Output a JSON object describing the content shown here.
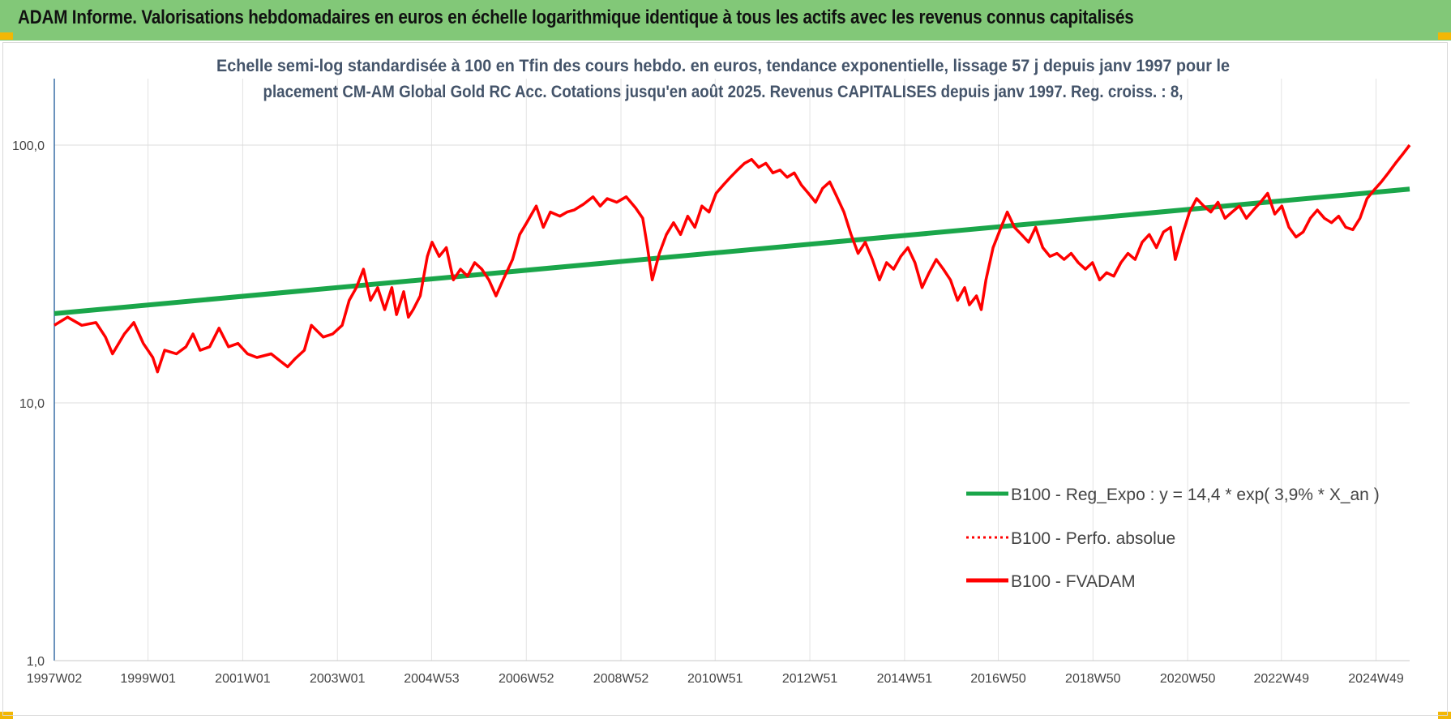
{
  "header": {
    "title": "ADAM Informe. Valorisations hebdomadaires en euros en échelle logarithmique identique à tous les actifs avec les revenus connus capitalisés",
    "background_color": "#82c878",
    "corner_color": "#f2b705"
  },
  "chart_data": {
    "type": "line",
    "title_lines": [
      "Echelle semi-log standardisée à 100 en Tfin des cours hebdo. en euros, tendance exponentielle, lissage 57 j depuis janv 1997 pour le",
      "placement CM-AM Global Gold RC Acc.  Cotations jusqu'en août 2025.  Revenus CAPITALISES depuis janv 1997. Reg.  croiss. : 8,"
    ],
    "y_scale": "log",
    "ylim": [
      1,
      200
    ],
    "xlim": [
      1997.02,
      2025.65
    ],
    "y_ticks": [
      {
        "value": 1,
        "label": "1,0"
      },
      {
        "value": 10,
        "label": "10,0"
      },
      {
        "value": 100,
        "label": "100,0"
      }
    ],
    "x_ticks": [
      {
        "year": 1997.02,
        "label": "1997W02"
      },
      {
        "year": 1999.0,
        "label": "1999W01"
      },
      {
        "year": 2001.0,
        "label": "2001W01"
      },
      {
        "year": 2003.0,
        "label": "2003W01"
      },
      {
        "year": 2004.99,
        "label": "2004W53"
      },
      {
        "year": 2006.99,
        "label": "2006W52"
      },
      {
        "year": 2008.99,
        "label": "2008W52"
      },
      {
        "year": 2010.98,
        "label": "2010W51"
      },
      {
        "year": 2012.98,
        "label": "2012W51"
      },
      {
        "year": 2014.98,
        "label": "2014W51"
      },
      {
        "year": 2016.96,
        "label": "2016W50"
      },
      {
        "year": 2018.96,
        "label": "2018W50"
      },
      {
        "year": 2020.96,
        "label": "2020W50"
      },
      {
        "year": 2022.94,
        "label": "2022W49"
      },
      {
        "year": 2024.94,
        "label": "2024W49"
      }
    ],
    "grid": "vertical and horizontal",
    "legend_position": "bottom-right",
    "series": [
      {
        "name": "B100 - Reg_Expo : y = 14,4 * exp( 3,9% *  X_an )",
        "color": "#1aa64a",
        "style": "solid",
        "points": [
          [
            1997.02,
            22.2
          ],
          [
            2025.65,
            67.5
          ]
        ]
      },
      {
        "name": "B100 - Perfo. absolue",
        "color": "#ff0000",
        "style": "dotted",
        "points": []
      },
      {
        "name": "B100 - FVADAM",
        "color": "#ff0000",
        "style": "solid",
        "points": [
          [
            1997.02,
            20
          ],
          [
            1997.3,
            21.5
          ],
          [
            1997.6,
            20
          ],
          [
            1997.9,
            20.5
          ],
          [
            1998.1,
            18
          ],
          [
            1998.25,
            15.5
          ],
          [
            1998.5,
            18.5
          ],
          [
            1998.7,
            20.5
          ],
          [
            1998.9,
            17
          ],
          [
            1999.1,
            15
          ],
          [
            1999.2,
            13.2
          ],
          [
            1999.35,
            16
          ],
          [
            1999.6,
            15.5
          ],
          [
            1999.8,
            16.5
          ],
          [
            1999.95,
            18.5
          ],
          [
            2000.1,
            16
          ],
          [
            2000.3,
            16.5
          ],
          [
            2000.5,
            19.5
          ],
          [
            2000.7,
            16.5
          ],
          [
            2000.9,
            17
          ],
          [
            2001.1,
            15.5
          ],
          [
            2001.3,
            15
          ],
          [
            2001.6,
            15.5
          ],
          [
            2001.8,
            14.5
          ],
          [
            2001.95,
            13.8
          ],
          [
            2002.1,
            14.8
          ],
          [
            2002.3,
            16
          ],
          [
            2002.45,
            20
          ],
          [
            2002.7,
            18
          ],
          [
            2002.9,
            18.5
          ],
          [
            2003.1,
            20
          ],
          [
            2003.25,
            25
          ],
          [
            2003.4,
            28
          ],
          [
            2003.55,
            33
          ],
          [
            2003.7,
            25
          ],
          [
            2003.85,
            28
          ],
          [
            2004.0,
            23
          ],
          [
            2004.15,
            28
          ],
          [
            2004.25,
            22
          ],
          [
            2004.4,
            27
          ],
          [
            2004.5,
            21.5
          ],
          [
            2004.6,
            23
          ],
          [
            2004.75,
            26
          ],
          [
            2004.9,
            37
          ],
          [
            2005.0,
            42
          ],
          [
            2005.15,
            37
          ],
          [
            2005.3,
            40
          ],
          [
            2005.45,
            30
          ],
          [
            2005.6,
            33
          ],
          [
            2005.75,
            31
          ],
          [
            2005.9,
            35
          ],
          [
            2006.05,
            33
          ],
          [
            2006.2,
            30
          ],
          [
            2006.35,
            26
          ],
          [
            2006.5,
            30
          ],
          [
            2006.7,
            36
          ],
          [
            2006.85,
            45
          ],
          [
            2007.0,
            50
          ],
          [
            2007.2,
            58
          ],
          [
            2007.35,
            48
          ],
          [
            2007.5,
            55
          ],
          [
            2007.7,
            53
          ],
          [
            2007.85,
            55
          ],
          [
            2008.0,
            56
          ],
          [
            2008.2,
            59
          ],
          [
            2008.4,
            63
          ],
          [
            2008.55,
            58
          ],
          [
            2008.7,
            62
          ],
          [
            2008.9,
            60
          ],
          [
            2009.1,
            63
          ],
          [
            2009.3,
            57
          ],
          [
            2009.45,
            52
          ],
          [
            2009.55,
            40
          ],
          [
            2009.65,
            30
          ],
          [
            2009.8,
            38
          ],
          [
            2009.95,
            45
          ],
          [
            2010.1,
            50
          ],
          [
            2010.25,
            45
          ],
          [
            2010.4,
            53
          ],
          [
            2010.55,
            48
          ],
          [
            2010.7,
            58
          ],
          [
            2010.85,
            55
          ],
          [
            2011.0,
            65
          ],
          [
            2011.15,
            70
          ],
          [
            2011.3,
            75
          ],
          [
            2011.45,
            80
          ],
          [
            2011.6,
            85
          ],
          [
            2011.75,
            88
          ],
          [
            2011.9,
            82
          ],
          [
            2012.05,
            85
          ],
          [
            2012.2,
            78
          ],
          [
            2012.35,
            80
          ],
          [
            2012.5,
            75
          ],
          [
            2012.65,
            78
          ],
          [
            2012.8,
            70
          ],
          [
            2012.95,
            65
          ],
          [
            2013.1,
            60
          ],
          [
            2013.25,
            68
          ],
          [
            2013.4,
            72
          ],
          [
            2013.55,
            63
          ],
          [
            2013.7,
            55
          ],
          [
            2013.85,
            45
          ],
          [
            2014.0,
            38
          ],
          [
            2014.15,
            42
          ],
          [
            2014.3,
            36
          ],
          [
            2014.45,
            30
          ],
          [
            2014.6,
            35
          ],
          [
            2014.75,
            33
          ],
          [
            2014.9,
            37
          ],
          [
            2015.05,
            40
          ],
          [
            2015.2,
            35
          ],
          [
            2015.35,
            28
          ],
          [
            2015.5,
            32
          ],
          [
            2015.65,
            36
          ],
          [
            2015.8,
            33
          ],
          [
            2015.95,
            30
          ],
          [
            2016.1,
            25
          ],
          [
            2016.25,
            28
          ],
          [
            2016.35,
            24
          ],
          [
            2016.5,
            26
          ],
          [
            2016.6,
            23
          ],
          [
            2016.7,
            30
          ],
          [
            2016.85,
            40
          ],
          [
            2017.0,
            47
          ],
          [
            2017.15,
            55
          ],
          [
            2017.3,
            48
          ],
          [
            2017.45,
            45
          ],
          [
            2017.6,
            42
          ],
          [
            2017.75,
            48
          ],
          [
            2017.9,
            40
          ],
          [
            2018.05,
            37
          ],
          [
            2018.2,
            38
          ],
          [
            2018.35,
            36
          ],
          [
            2018.5,
            38
          ],
          [
            2018.65,
            35
          ],
          [
            2018.8,
            33
          ],
          [
            2018.95,
            35
          ],
          [
            2019.1,
            30
          ],
          [
            2019.25,
            32
          ],
          [
            2019.4,
            31
          ],
          [
            2019.55,
            35
          ],
          [
            2019.7,
            38
          ],
          [
            2019.85,
            36
          ],
          [
            2020.0,
            42
          ],
          [
            2020.15,
            45
          ],
          [
            2020.3,
            40
          ],
          [
            2020.45,
            46
          ],
          [
            2020.6,
            48
          ],
          [
            2020.7,
            36
          ],
          [
            2020.85,
            45
          ],
          [
            2021.0,
            55
          ],
          [
            2021.15,
            62
          ],
          [
            2021.3,
            58
          ],
          [
            2021.45,
            55
          ],
          [
            2021.6,
            60
          ],
          [
            2021.75,
            52
          ],
          [
            2021.9,
            55
          ],
          [
            2022.05,
            58
          ],
          [
            2022.2,
            52
          ],
          [
            2022.35,
            56
          ],
          [
            2022.5,
            60
          ],
          [
            2022.65,
            65
          ],
          [
            2022.8,
            54
          ],
          [
            2022.95,
            58
          ],
          [
            2023.1,
            48
          ],
          [
            2023.25,
            44
          ],
          [
            2023.4,
            46
          ],
          [
            2023.55,
            52
          ],
          [
            2023.7,
            56
          ],
          [
            2023.85,
            52
          ],
          [
            2024.0,
            50
          ],
          [
            2024.15,
            53
          ],
          [
            2024.3,
            48
          ],
          [
            2024.45,
            47
          ],
          [
            2024.6,
            52
          ],
          [
            2024.75,
            62
          ],
          [
            2024.9,
            67
          ],
          [
            2025.05,
            72
          ],
          [
            2025.2,
            78
          ],
          [
            2025.35,
            85
          ],
          [
            2025.5,
            92
          ],
          [
            2025.65,
            100
          ]
        ]
      }
    ]
  }
}
